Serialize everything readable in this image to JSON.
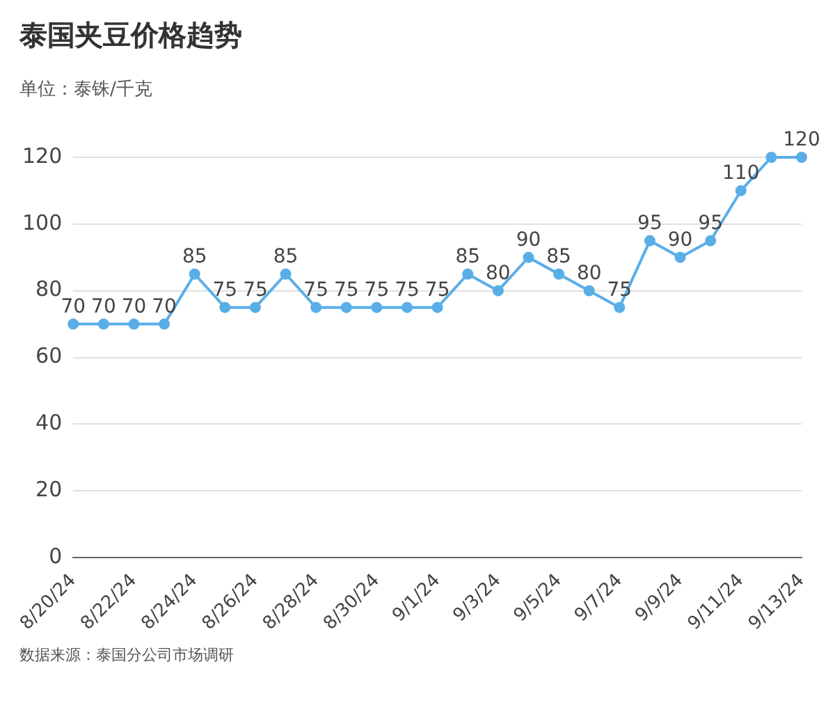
{
  "chart_data": {
    "type": "line",
    "title": "泰国夹豆价格趋势",
    "subtitle": "单位：泰铢/千克",
    "categories": [
      "8/20/24",
      null,
      "8/22/24",
      null,
      "8/24/24",
      null,
      "8/26/24",
      null,
      "8/28/24",
      null,
      "8/30/24",
      null,
      "9/1/24",
      null,
      "9/3/24",
      null,
      "9/5/24",
      null,
      "9/7/24",
      null,
      "9/9/24",
      null,
      "9/11/24",
      null,
      "9/13/24"
    ],
    "series": [
      {
        "color": "#5aaee8",
        "values": [
          70,
          70,
          70,
          70,
          85,
          75,
          75,
          85,
          75,
          75,
          75,
          75,
          75,
          85,
          80,
          90,
          85,
          80,
          75,
          95,
          90,
          95,
          110,
          120,
          120
        ],
        "value_labels": [
          "70",
          "70",
          "70",
          "70",
          "85",
          "75",
          "75",
          "85",
          "75",
          "75",
          "75",
          "75",
          "75",
          "85",
          "80",
          "90",
          "85",
          "80",
          "75",
          "95",
          "90",
          "95",
          "110",
          null,
          "120"
        ]
      }
    ],
    "ylim": [
      0,
      120
    ],
    "yticks": [
      0,
      20,
      40,
      60,
      80,
      100,
      120
    ],
    "grid": "y",
    "marker": "circle",
    "line_style": "solid",
    "legend": false,
    "annotations": [
      "数据来源：泰国分公司市场调研"
    ]
  }
}
